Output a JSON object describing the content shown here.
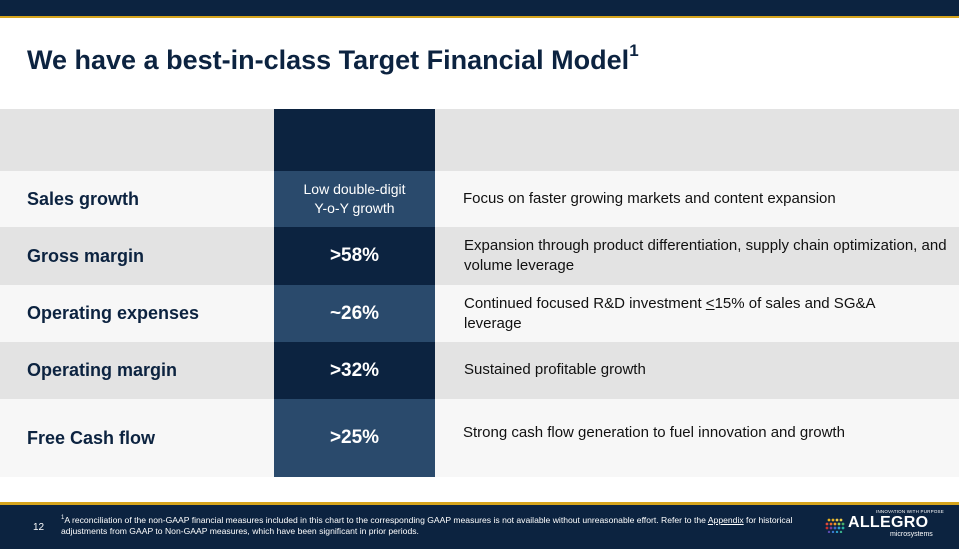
{
  "header": {
    "title": "We have a best-in-class Target Financial Model",
    "title_sup": "1"
  },
  "rows": [
    {
      "label": "Sales growth",
      "value": "Low double-digit\nY-o-Y growth",
      "desc": "Focus on faster growing markets and content expansion"
    },
    {
      "label": "Gross margin",
      "value": ">58%",
      "desc": "Expansion through product differentiation, supply chain optimization, and volume leverage"
    },
    {
      "label": "Operating expenses",
      "value": "~26%",
      "desc_before": "Continued focused R&D investment ",
      "desc_underline": "<",
      "desc_after": "15% of sales and SG&A leverage"
    },
    {
      "label": "Operating margin",
      "value": ">32%",
      "desc": "Sustained profitable growth"
    },
    {
      "label": "Free Cash flow",
      "value": ">25%",
      "desc": "Strong cash flow generation to fuel innovation and growth"
    }
  ],
  "footer": {
    "page_number": "12",
    "footnote_sup": "1",
    "footnote_text": "A reconciliation of the non-GAAP financial measures included in this chart to the corresponding GAAP measures is not available without unreasonable effort. Refer to the ",
    "footnote_link": "Appendix",
    "footnote_text2": " for historical adjustments from GAAP to Non-GAAP measures, which have been significant in prior periods.",
    "logo_tagline": "INNOVATION WITH PURPOSE",
    "logo_name": "ALLEGRO",
    "logo_sub": "microsystems"
  },
  "colors": {
    "navy": "#0c2340",
    "gold": "#d6a41c",
    "value_light": "#2a4a6c",
    "row_grey": "#e3e3e3"
  }
}
